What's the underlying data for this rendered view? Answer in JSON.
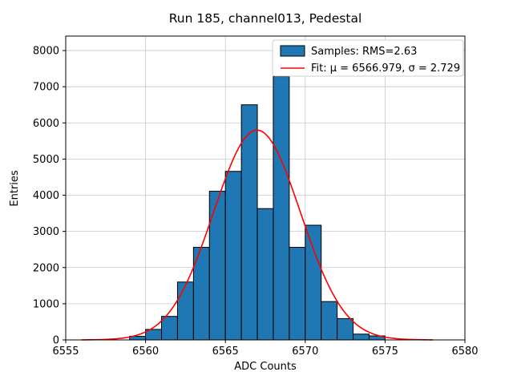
{
  "figure": {
    "title": "Run 185, channel013, Pedestal",
    "xlabel": "ADC Counts",
    "ylabel": "Entries"
  },
  "chart_data": {
    "type": "bar",
    "subtype": "histogram-with-gaussian-fit",
    "title": "Run 185, channel013, Pedestal",
    "xlabel": "ADC Counts",
    "ylabel": "Entries",
    "xlim": [
      6555,
      6580
    ],
    "ylim": [
      0,
      8400
    ],
    "x_ticks": [
      6555,
      6560,
      6565,
      6570,
      6575,
      6580
    ],
    "y_ticks": [
      0,
      1000,
      2000,
      3000,
      4000,
      5000,
      6000,
      7000,
      8000
    ],
    "grid": true,
    "grid_color": "#c8c8c8",
    "bin_width": 1,
    "bin_left_edges": [
      6559,
      6560,
      6561,
      6562,
      6563,
      6564,
      6565,
      6566,
      6567,
      6568,
      6569,
      6570,
      6571,
      6572,
      6573,
      6574
    ],
    "counts": [
      100,
      290,
      650,
      1600,
      2560,
      4110,
      4660,
      6500,
      3630,
      7280,
      2560,
      3170,
      1060,
      590,
      160,
      110
    ],
    "bar_color": "#1f77b4",
    "bar_edge_color": "#000000",
    "fit": {
      "type": "gaussian",
      "mu": 6566.979,
      "sigma": 2.729,
      "amplitude": 5800,
      "color": "#ff0000",
      "x_range": [
        6556,
        6578
      ]
    },
    "legend": {
      "position": "upper right",
      "entries": [
        {
          "type": "patch",
          "color": "#1f77b4",
          "label": "Samples: RMS=2.63"
        },
        {
          "type": "line",
          "color": "#ff0000",
          "label": "Fit: μ = 6566.979, σ = 2.729"
        }
      ]
    }
  }
}
